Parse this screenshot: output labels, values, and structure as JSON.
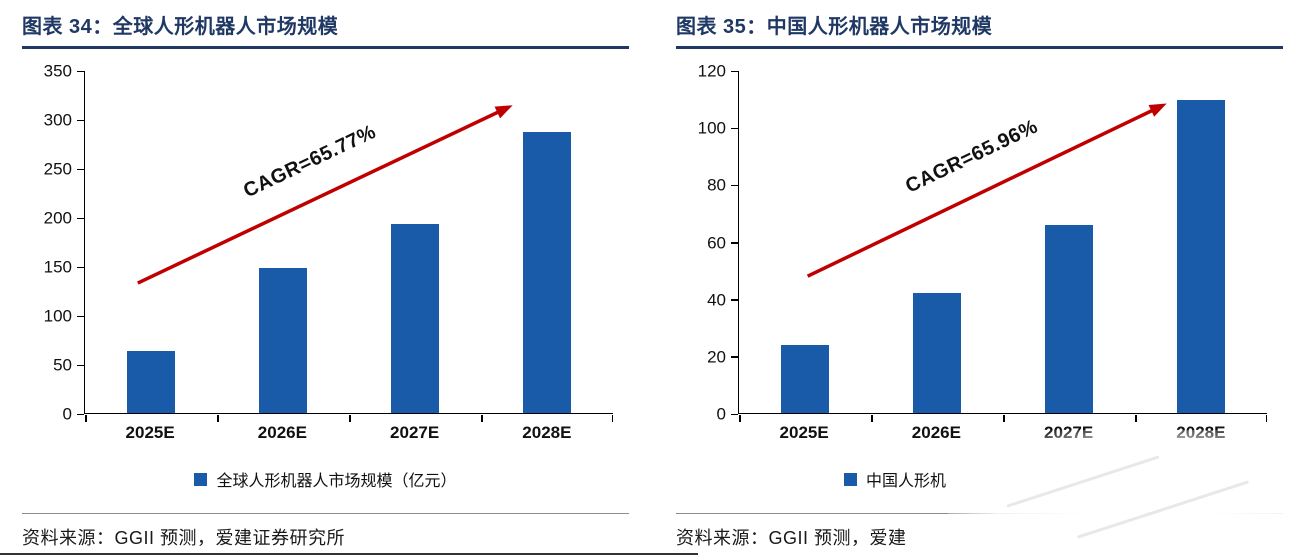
{
  "colors": {
    "title": "#1f3864",
    "bar": "#1a5ba9",
    "arrow": "#c00000",
    "axis": "#000000"
  },
  "panels": [
    {
      "heading": "图表 34：全球人形机器人市场规模",
      "legend": "全球人形机器人市场规模（亿元）",
      "annotation": "CAGR=65.77%",
      "source": "资料来源：GGII 预测，爱建证券研究所"
    },
    {
      "heading": "图表 35：中国人形机器人市场规模",
      "legend": "中国人形机",
      "annotation": "CAGR=65.96%",
      "source": "资料来源：GGII 预测，爱建"
    }
  ],
  "chart_data": [
    {
      "type": "bar",
      "title": "全球人形机器人市场规模",
      "categories": [
        "2025E",
        "2026E",
        "2027E",
        "2028E"
      ],
      "values": [
        63,
        148,
        193,
        288
      ],
      "xlabel": "",
      "ylabel": "",
      "ylim": [
        0,
        350
      ],
      "yticks": [
        0,
        50,
        100,
        150,
        200,
        250,
        300,
        350
      ],
      "grid": false,
      "legend": [
        "全球人形机器人市场规模（亿元）"
      ],
      "legend_position": "bottom",
      "annotation": "CAGR=65.77%",
      "annotation_arrow": {
        "x1": 0.1,
        "y1": 0.62,
        "x2": 0.81,
        "y2": 0.1
      }
    },
    {
      "type": "bar",
      "title": "中国人形机器人市场规模",
      "categories": [
        "2025E",
        "2026E",
        "2027E",
        "2028E"
      ],
      "values": [
        24,
        42,
        66,
        110
      ],
      "xlabel": "",
      "ylabel": "",
      "ylim": [
        0,
        120
      ],
      "yticks": [
        0,
        20,
        40,
        60,
        80,
        100,
        120
      ],
      "grid": false,
      "legend": [
        "中国人形机"
      ],
      "legend_position": "bottom",
      "annotation": "CAGR=65.96%",
      "annotation_arrow": {
        "x1": 0.13,
        "y1": 0.6,
        "x2": 0.81,
        "y2": 0.095
      }
    }
  ]
}
